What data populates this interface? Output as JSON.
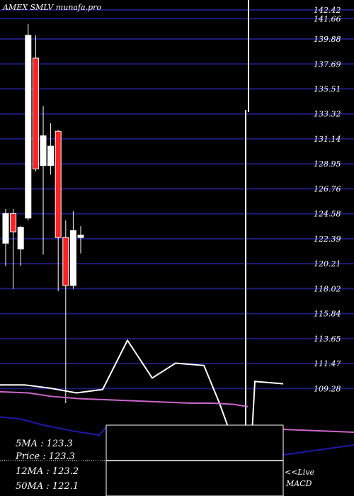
{
  "chart_data": {
    "type": "candlestick",
    "title": "AMEX  SMLV munafa.pro",
    "ylim": [
      107.1,
      142.42
    ],
    "y_ticks": [
      142.42,
      141.66,
      139.88,
      137.69,
      135.51,
      133.32,
      131.14,
      128.95,
      126.76,
      124.58,
      122.39,
      120.21,
      118.02,
      115.84,
      113.65,
      111.47,
      109.28
    ],
    "candles": [
      {
        "open": 122.0,
        "high": 125.0,
        "low": 120.0,
        "close": 124.6,
        "color": "white"
      },
      {
        "open": 124.6,
        "high": 125.0,
        "low": 118.0,
        "close": 123.0,
        "color": "red"
      },
      {
        "open": 121.5,
        "high": 123.5,
        "low": 120.0,
        "close": 123.4,
        "color": "white"
      },
      {
        "open": 124.2,
        "high": 141.2,
        "low": 124.0,
        "close": 140.2,
        "color": "white"
      },
      {
        "open": 138.2,
        "high": 140.2,
        "low": 128.3,
        "close": 128.5,
        "color": "red"
      },
      {
        "open": 128.8,
        "high": 134.0,
        "low": 121.0,
        "close": 131.4,
        "color": "white"
      },
      {
        "open": 128.8,
        "high": 132.5,
        "low": 128.0,
        "close": 130.5,
        "color": "white"
      },
      {
        "open": 131.8,
        "high": 131.9,
        "low": 117.8,
        "close": 122.5,
        "color": "red"
      },
      {
        "open": 122.5,
        "high": 124.0,
        "low": 108.0,
        "close": 118.3,
        "color": "red"
      },
      {
        "open": 118.3,
        "high": 124.8,
        "low": 118.0,
        "close": 123.1,
        "color": "white"
      },
      {
        "open": 122.5,
        "high": 123.5,
        "low": 121.1,
        "close": 122.7,
        "color": "white"
      }
    ],
    "macd_line": [
      109.6,
      109.6,
      109.3,
      108.9,
      109.2,
      113.5,
      110.2,
      111.5,
      111.3,
      108.0,
      102.0,
      101.0,
      109.9,
      109.7
    ],
    "ma_pink": [
      109.0,
      108.9,
      108.6,
      108.4,
      108.3,
      108.2,
      108.1,
      108.0,
      108.0,
      107.9,
      107.7
    ],
    "ma_blue": [
      106.8,
      106.6,
      106.1,
      105.6,
      105.2,
      105.9
    ],
    "legend": {
      "ma5": "5MA : 123.3",
      "price": "Price   : 123.3",
      "ma12": "12MA : 123.2",
      "ma50": "50MA : 122.1"
    },
    "side_labels": {
      "live": "<<Live",
      "macd": "MACD"
    }
  }
}
